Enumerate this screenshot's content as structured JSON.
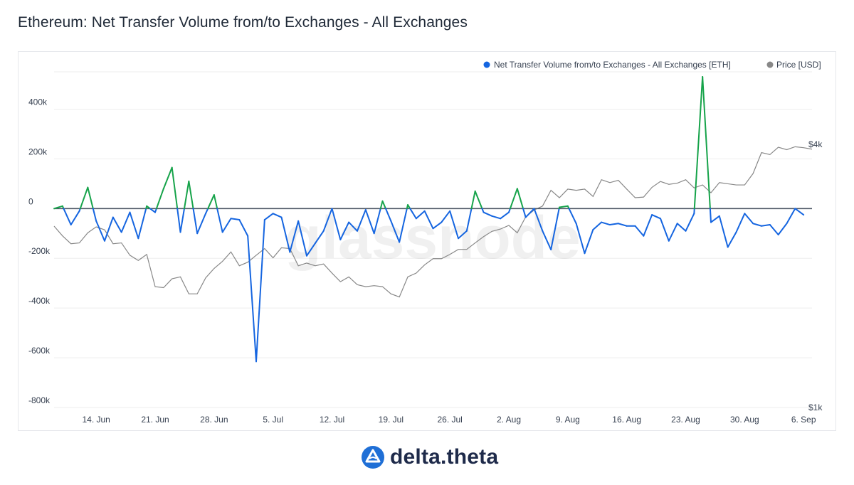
{
  "page": {
    "title": "Ethereum: Net Transfer Volume from/to Exchanges - All Exchanges",
    "watermark": "glassnode",
    "footer_brand": "delta.theta"
  },
  "colors": {
    "inflow_positive": "#16a34a",
    "outflow_negative": "#1565e0",
    "price": "#888888",
    "zero_line": "#4b5563",
    "grid": "#eeeeee",
    "brand": "#1f6fd6"
  },
  "chart_data": {
    "type": "line",
    "title": "",
    "legend_position": "top-right",
    "x_tick_labels": [
      "14. Jun",
      "21. Jun",
      "28. Jun",
      "5. Jul",
      "12. Jul",
      "19. Jul",
      "26. Jul",
      "2. Aug",
      "9. Aug",
      "16. Aug",
      "23. Aug",
      "30. Aug",
      "6. Sep"
    ],
    "x_range": [
      "2021-06-09",
      "2021-09-07"
    ],
    "y_left": {
      "tick_labels": [
        "400k",
        "200k",
        "0",
        "-200k",
        "-400k",
        "-600k",
        "-800k"
      ],
      "tick_values": [
        400000,
        200000,
        0,
        -200000,
        -400000,
        -600000,
        -800000
      ],
      "range": [
        -800000,
        550000
      ]
    },
    "y_right": {
      "tick_labels": [
        "$4k",
        "$1k"
      ],
      "tick_values": [
        4000,
        1000
      ],
      "scale": "log"
    },
    "grid": true,
    "series": [
      {
        "name": "Net Transfer Volume from/to Exchanges - All Exchanges [ETH]",
        "axis": "left",
        "dates": [
          "2021-06-09",
          "2021-06-10",
          "2021-06-11",
          "2021-06-12",
          "2021-06-13",
          "2021-06-14",
          "2021-06-15",
          "2021-06-16",
          "2021-06-17",
          "2021-06-18",
          "2021-06-19",
          "2021-06-20",
          "2021-06-21",
          "2021-06-22",
          "2021-06-23",
          "2021-06-24",
          "2021-06-25",
          "2021-06-26",
          "2021-06-27",
          "2021-06-28",
          "2021-06-29",
          "2021-06-30",
          "2021-07-01",
          "2021-07-02",
          "2021-07-03",
          "2021-07-04",
          "2021-07-05",
          "2021-07-06",
          "2021-07-07",
          "2021-07-08",
          "2021-07-09",
          "2021-07-10",
          "2021-07-11",
          "2021-07-12",
          "2021-07-13",
          "2021-07-14",
          "2021-07-15",
          "2021-07-16",
          "2021-07-17",
          "2021-07-18",
          "2021-07-19",
          "2021-07-20",
          "2021-07-21",
          "2021-07-22",
          "2021-07-23",
          "2021-07-24",
          "2021-07-25",
          "2021-07-26",
          "2021-07-27",
          "2021-07-28",
          "2021-07-29",
          "2021-07-30",
          "2021-07-31",
          "2021-08-01",
          "2021-08-02",
          "2021-08-03",
          "2021-08-04",
          "2021-08-05",
          "2021-08-06",
          "2021-08-07",
          "2021-08-08",
          "2021-08-09",
          "2021-08-10",
          "2021-08-11",
          "2021-08-12",
          "2021-08-13",
          "2021-08-14",
          "2021-08-15",
          "2021-08-16",
          "2021-08-17",
          "2021-08-18",
          "2021-08-19",
          "2021-08-20",
          "2021-08-21",
          "2021-08-22",
          "2021-08-23",
          "2021-08-24",
          "2021-08-25",
          "2021-08-26",
          "2021-08-27",
          "2021-08-28",
          "2021-08-29",
          "2021-08-30",
          "2021-08-31",
          "2021-09-01",
          "2021-09-02",
          "2021-09-03",
          "2021-09-04",
          "2021-09-05",
          "2021-09-06",
          "2021-09-07"
        ],
        "values": [
          0,
          10000,
          -65000,
          -10000,
          85000,
          -50000,
          -130000,
          -35000,
          -95000,
          -15000,
          -120000,
          10000,
          -15000,
          80000,
          165000,
          -95000,
          110000,
          -100000,
          -20000,
          55000,
          -95000,
          -40000,
          -45000,
          -110000,
          -615000,
          -45000,
          -20000,
          -35000,
          -175000,
          -50000,
          -190000,
          -140000,
          -90000,
          0,
          -125000,
          -55000,
          -90000,
          -5000,
          -100000,
          30000,
          -50000,
          -135000,
          15000,
          -40000,
          -10000,
          -80000,
          -55000,
          -10000,
          -120000,
          -90000,
          70000,
          -15000,
          -30000,
          -40000,
          -15000,
          80000,
          -35000,
          0,
          -90000,
          -165000,
          5000,
          10000,
          -60000,
          -180000,
          -85000,
          -55000,
          -65000,
          -60000,
          -70000,
          -70000,
          -110000,
          -25000,
          -40000,
          -130000,
          -60000,
          -90000,
          -20000,
          530000,
          -55000,
          -30000,
          -155000,
          -95000,
          -20000,
          -60000,
          -70000,
          -65000,
          -105000,
          -60000,
          0,
          -25000,
          null
        ]
      },
      {
        "name": "Price [USD]",
        "axis": "right",
        "dates": [
          "2021-06-09",
          "2021-06-10",
          "2021-06-11",
          "2021-06-12",
          "2021-06-13",
          "2021-06-14",
          "2021-06-15",
          "2021-06-16",
          "2021-06-17",
          "2021-06-18",
          "2021-06-19",
          "2021-06-20",
          "2021-06-21",
          "2021-06-22",
          "2021-06-23",
          "2021-06-24",
          "2021-06-25",
          "2021-06-26",
          "2021-06-27",
          "2021-06-28",
          "2021-06-29",
          "2021-06-30",
          "2021-07-01",
          "2021-07-02",
          "2021-07-03",
          "2021-07-04",
          "2021-07-05",
          "2021-07-06",
          "2021-07-07",
          "2021-07-08",
          "2021-07-09",
          "2021-07-10",
          "2021-07-11",
          "2021-07-12",
          "2021-07-13",
          "2021-07-14",
          "2021-07-15",
          "2021-07-16",
          "2021-07-17",
          "2021-07-18",
          "2021-07-19",
          "2021-07-20",
          "2021-07-21",
          "2021-07-22",
          "2021-07-23",
          "2021-07-24",
          "2021-07-25",
          "2021-07-26",
          "2021-07-27",
          "2021-07-28",
          "2021-07-29",
          "2021-07-30",
          "2021-07-31",
          "2021-08-01",
          "2021-08-02",
          "2021-08-03",
          "2021-08-04",
          "2021-08-05",
          "2021-08-06",
          "2021-08-07",
          "2021-08-08",
          "2021-08-09",
          "2021-08-10",
          "2021-08-11",
          "2021-08-12",
          "2021-08-13",
          "2021-08-14",
          "2021-08-15",
          "2021-08-16",
          "2021-08-17",
          "2021-08-18",
          "2021-08-19",
          "2021-08-20",
          "2021-08-21",
          "2021-08-22",
          "2021-08-23",
          "2021-08-24",
          "2021-08-25",
          "2021-08-26",
          "2021-08-27",
          "2021-08-28",
          "2021-08-29",
          "2021-08-30",
          "2021-08-31",
          "2021-09-01",
          "2021-09-02",
          "2021-09-03",
          "2021-09-04",
          "2021-09-05",
          "2021-09-06",
          "2021-09-07"
        ],
        "values": [
          2600,
          2470,
          2370,
          2380,
          2510,
          2590,
          2550,
          2370,
          2380,
          2230,
          2170,
          2240,
          1890,
          1880,
          1970,
          1990,
          1820,
          1820,
          1980,
          2080,
          2160,
          2270,
          2110,
          2150,
          2230,
          2310,
          2200,
          2320,
          2310,
          2110,
          2140,
          2110,
          2130,
          2030,
          1940,
          1990,
          1910,
          1890,
          1900,
          1890,
          1820,
          1790,
          1990,
          2030,
          2120,
          2190,
          2190,
          2240,
          2300,
          2300,
          2380,
          2460,
          2530,
          2560,
          2610,
          2510,
          2730,
          2830,
          2890,
          3140,
          3020,
          3160,
          3140,
          3160,
          3040,
          3320,
          3270,
          3310,
          3160,
          3020,
          3030,
          3190,
          3290,
          3240,
          3260,
          3320,
          3180,
          3230,
          3100,
          3270,
          3250,
          3230,
          3230,
          3430,
          3830,
          3790,
          3940,
          3890,
          3950,
          3930,
          3900
        ]
      }
    ]
  }
}
